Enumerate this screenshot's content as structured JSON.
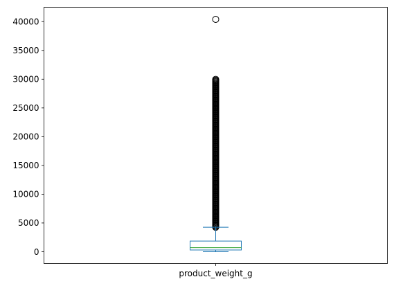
{
  "chart_data": {
    "type": "box",
    "title": "",
    "xlabel": "",
    "ylabel": "",
    "categories": [
      "product_weight_g"
    ],
    "series": [
      {
        "name": "product_weight_g",
        "whisker_low": 0,
        "q1": 300,
        "median": 700,
        "q3": 1850,
        "whisker_high": 4250,
        "outliers_range": [
          4250,
          30000
        ],
        "outliers_extra": [
          40400
        ]
      }
    ],
    "ylim": [
      -2050,
      42500
    ],
    "yticks": [
      0,
      5000,
      10000,
      15000,
      20000,
      25000,
      30000,
      35000,
      40000
    ],
    "ytick_labels": [
      "0",
      "5000",
      "10000",
      "15000",
      "20000",
      "25000",
      "30000",
      "35000",
      "40000"
    ],
    "grid": false,
    "legend": "none"
  },
  "colors": {
    "box": "#1f77b4",
    "median": "#2ca02c",
    "outlier": "#000000",
    "axes": "#000000"
  }
}
